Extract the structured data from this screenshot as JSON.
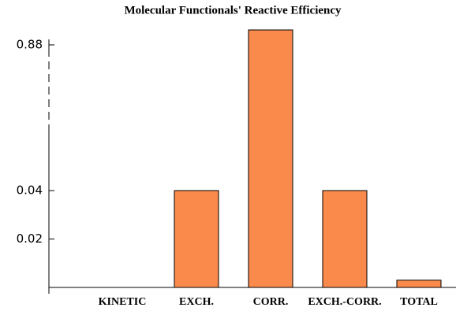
{
  "chart_data": {
    "type": "bar",
    "title": "Molecular Functionals' Reactive Efficiency",
    "categories": [
      "KINETIC",
      "EXCH.",
      "CORR.",
      "EXCH.-CORR.",
      "TOTAL"
    ],
    "values": [
      0,
      0.04,
      0.9,
      0.04,
      0.003
    ],
    "color": "#f98a4c",
    "ylim": [
      0,
      0.9
    ],
    "yticks": [
      0.02,
      0.04,
      0.88
    ],
    "y_axis_break": true
  }
}
